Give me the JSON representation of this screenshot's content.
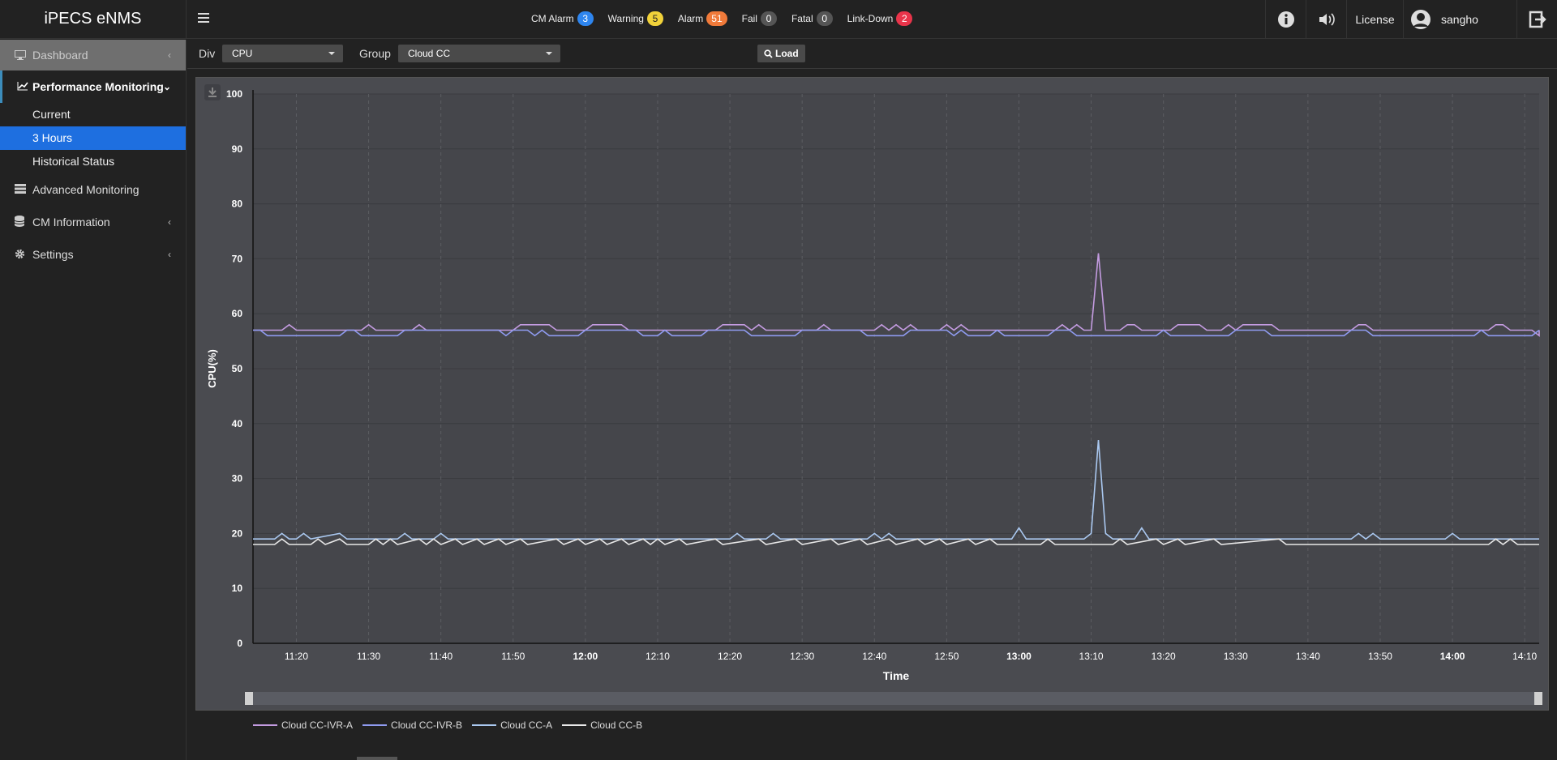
{
  "app": {
    "title": "iPECS eNMS"
  },
  "alarms": [
    {
      "label": "CM Alarm",
      "count": "3",
      "color": "#2e86f0"
    },
    {
      "label": "Warning",
      "count": "5",
      "color": "#f1d23a",
      "text_color": "#222"
    },
    {
      "label": "Alarm",
      "count": "51",
      "color": "#f07a3a"
    },
    {
      "label": "Fail",
      "count": "0",
      "color": "#555"
    },
    {
      "label": "Fatal",
      "count": "0",
      "color": "#555"
    },
    {
      "label": "Link-Down",
      "count": "2",
      "color": "#e8344a"
    }
  ],
  "topright": {
    "license": "License",
    "user": "sangho"
  },
  "sidebar": {
    "dashboard": "Dashboard",
    "performance": "Performance Monitoring",
    "sub": [
      "Current",
      "3 Hours",
      "Historical Status"
    ],
    "advanced": "Advanced Monitoring",
    "cm_info": "CM Information",
    "settings": "Settings"
  },
  "filters": {
    "div_label": "Div",
    "div_value": "CPU",
    "group_label": "Group",
    "group_value": "Cloud CC",
    "load": "Load"
  },
  "chart_data": {
    "type": "line",
    "xlabel": "Time",
    "ylabel": "CPU(%)",
    "ylim": [
      0,
      100
    ],
    "yticks": [
      0,
      10,
      20,
      30,
      40,
      50,
      60,
      70,
      80,
      90,
      100
    ],
    "xrange": [
      "11:14",
      "14:12"
    ],
    "xticks": [
      {
        "label": "11:20",
        "bold": false
      },
      {
        "label": "11:30",
        "bold": false
      },
      {
        "label": "11:40",
        "bold": false
      },
      {
        "label": "11:50",
        "bold": false
      },
      {
        "label": "12:00",
        "bold": true
      },
      {
        "label": "12:10",
        "bold": false
      },
      {
        "label": "12:20",
        "bold": false
      },
      {
        "label": "12:30",
        "bold": false
      },
      {
        "label": "12:40",
        "bold": false
      },
      {
        "label": "12:50",
        "bold": false
      },
      {
        "label": "13:00",
        "bold": true
      },
      {
        "label": "13:10",
        "bold": false
      },
      {
        "label": "13:20",
        "bold": false
      },
      {
        "label": "13:30",
        "bold": false
      },
      {
        "label": "13:40",
        "bold": false
      },
      {
        "label": "13:50",
        "bold": false
      },
      {
        "label": "14:00",
        "bold": true
      },
      {
        "label": "14:10",
        "bold": false
      }
    ],
    "grid": true,
    "series": [
      {
        "name": "Cloud CC-IVR-A",
        "color": "#c39be0",
        "baseline": 57,
        "points": [
          [
            "11:14",
            57
          ],
          [
            "11:18",
            57
          ],
          [
            "11:19",
            58
          ],
          [
            "11:20",
            57
          ],
          [
            "11:29",
            57
          ],
          [
            "11:30",
            58
          ],
          [
            "11:31",
            57
          ],
          [
            "11:36",
            57
          ],
          [
            "11:37",
            58
          ],
          [
            "11:38",
            57
          ],
          [
            "11:50",
            57
          ],
          [
            "11:51",
            58
          ],
          [
            "11:55",
            58
          ],
          [
            "11:56",
            57
          ],
          [
            "12:00",
            57
          ],
          [
            "12:01",
            58
          ],
          [
            "12:05",
            58
          ],
          [
            "12:06",
            57
          ],
          [
            "12:18",
            57
          ],
          [
            "12:19",
            58
          ],
          [
            "12:22",
            58
          ],
          [
            "12:23",
            57
          ],
          [
            "12:24",
            58
          ],
          [
            "12:25",
            57
          ],
          [
            "12:32",
            57
          ],
          [
            "12:33",
            58
          ],
          [
            "12:34",
            57
          ],
          [
            "12:40",
            57
          ],
          [
            "12:41",
            58
          ],
          [
            "12:42",
            57
          ],
          [
            "12:43",
            58
          ],
          [
            "12:44",
            57
          ],
          [
            "12:45",
            58
          ],
          [
            "12:46",
            57
          ],
          [
            "12:49",
            57
          ],
          [
            "12:50",
            58
          ],
          [
            "12:51",
            57
          ],
          [
            "12:52",
            58
          ],
          [
            "12:53",
            57
          ],
          [
            "13:05",
            57
          ],
          [
            "13:06",
            58
          ],
          [
            "13:07",
            57
          ],
          [
            "13:08",
            58
          ],
          [
            "13:09",
            57
          ],
          [
            "13:10",
            57
          ],
          [
            "13:11",
            71
          ],
          [
            "13:12",
            57
          ],
          [
            "13:14",
            57
          ],
          [
            "13:15",
            58
          ],
          [
            "13:16",
            58
          ],
          [
            "13:17",
            57
          ],
          [
            "13:21",
            57
          ],
          [
            "13:22",
            58
          ],
          [
            "13:25",
            58
          ],
          [
            "13:26",
            57
          ],
          [
            "13:28",
            57
          ],
          [
            "13:29",
            58
          ],
          [
            "13:30",
            57
          ],
          [
            "13:31",
            58
          ],
          [
            "13:35",
            58
          ],
          [
            "13:36",
            57
          ],
          [
            "13:46",
            57
          ],
          [
            "13:47",
            58
          ],
          [
            "13:48",
            58
          ],
          [
            "13:49",
            57
          ],
          [
            "14:05",
            57
          ],
          [
            "14:06",
            58
          ],
          [
            "14:07",
            58
          ],
          [
            "14:08",
            57
          ],
          [
            "14:11",
            57
          ],
          [
            "14:12",
            56
          ],
          [
            "14:12",
            57
          ]
        ]
      },
      {
        "name": "Cloud CC-IVR-B",
        "color": "#8f9bf0",
        "baseline": 56,
        "points": [
          [
            "11:14",
            57
          ],
          [
            "11:15",
            57
          ],
          [
            "11:16",
            56
          ],
          [
            "11:26",
            56
          ],
          [
            "11:27",
            57
          ],
          [
            "11:28",
            57
          ],
          [
            "11:29",
            56
          ],
          [
            "11:34",
            56
          ],
          [
            "11:35",
            57
          ],
          [
            "11:48",
            57
          ],
          [
            "11:49",
            56
          ],
          [
            "11:50",
            57
          ],
          [
            "11:52",
            57
          ],
          [
            "11:53",
            56
          ],
          [
            "11:54",
            57
          ],
          [
            "11:55",
            56
          ],
          [
            "11:59",
            56
          ],
          [
            "12:00",
            57
          ],
          [
            "12:07",
            57
          ],
          [
            "12:08",
            56
          ],
          [
            "12:10",
            56
          ],
          [
            "12:11",
            57
          ],
          [
            "12:12",
            56
          ],
          [
            "12:16",
            56
          ],
          [
            "12:17",
            57
          ],
          [
            "12:22",
            57
          ],
          [
            "12:23",
            56
          ],
          [
            "12:29",
            56
          ],
          [
            "12:30",
            57
          ],
          [
            "12:38",
            57
          ],
          [
            "12:39",
            56
          ],
          [
            "12:44",
            56
          ],
          [
            "12:45",
            57
          ],
          [
            "12:50",
            57
          ],
          [
            "12:51",
            56
          ],
          [
            "12:52",
            57
          ],
          [
            "12:53",
            56
          ],
          [
            "12:56",
            56
          ],
          [
            "12:57",
            57
          ],
          [
            "12:58",
            56
          ],
          [
            "13:04",
            56
          ],
          [
            "13:05",
            57
          ],
          [
            "13:07",
            57
          ],
          [
            "13:08",
            56
          ],
          [
            "13:19",
            56
          ],
          [
            "13:20",
            57
          ],
          [
            "13:21",
            56
          ],
          [
            "13:29",
            56
          ],
          [
            "13:30",
            57
          ],
          [
            "13:34",
            57
          ],
          [
            "13:35",
            56
          ],
          [
            "13:45",
            56
          ],
          [
            "13:46",
            57
          ],
          [
            "13:48",
            57
          ],
          [
            "13:49",
            56
          ],
          [
            "14:03",
            56
          ],
          [
            "14:04",
            57
          ],
          [
            "14:05",
            56
          ],
          [
            "14:11",
            56
          ],
          [
            "14:12",
            57
          ]
        ]
      },
      {
        "name": "Cloud CC-A",
        "color": "#aac8f0",
        "baseline": 19,
        "points": [
          [
            "11:14",
            19
          ],
          [
            "11:17",
            19
          ],
          [
            "11:18",
            20
          ],
          [
            "11:19",
            19
          ],
          [
            "11:20",
            19
          ],
          [
            "11:21",
            20
          ],
          [
            "11:22",
            19
          ],
          [
            "11:26",
            20
          ],
          [
            "11:27",
            19
          ],
          [
            "11:34",
            19
          ],
          [
            "11:35",
            20
          ],
          [
            "11:36",
            19
          ],
          [
            "11:39",
            19
          ],
          [
            "11:40",
            20
          ],
          [
            "11:41",
            19
          ],
          [
            "12:20",
            19
          ],
          [
            "12:21",
            20
          ],
          [
            "12:22",
            19
          ],
          [
            "12:25",
            19
          ],
          [
            "12:26",
            20
          ],
          [
            "12:27",
            19
          ],
          [
            "12:39",
            19
          ],
          [
            "12:40",
            20
          ],
          [
            "12:41",
            19
          ],
          [
            "12:42",
            20
          ],
          [
            "12:43",
            19
          ],
          [
            "12:59",
            19
          ],
          [
            "13:00",
            21
          ],
          [
            "13:01",
            19
          ],
          [
            "13:09",
            19
          ],
          [
            "13:10",
            20
          ],
          [
            "13:11",
            37
          ],
          [
            "13:12",
            20
          ],
          [
            "13:13",
            19
          ],
          [
            "13:16",
            19
          ],
          [
            "13:17",
            21
          ],
          [
            "13:18",
            19
          ],
          [
            "13:46",
            19
          ],
          [
            "13:47",
            20
          ],
          [
            "13:48",
            19
          ],
          [
            "13:49",
            20
          ],
          [
            "13:50",
            19
          ],
          [
            "13:59",
            19
          ],
          [
            "14:00",
            20
          ],
          [
            "14:01",
            19
          ],
          [
            "14:12",
            19
          ]
        ]
      },
      {
        "name": "Cloud CC-B",
        "color": "#e8e8e8",
        "baseline": 18,
        "points": [
          [
            "11:14",
            18
          ],
          [
            "11:17",
            18
          ],
          [
            "11:18",
            19
          ],
          [
            "11:19",
            18
          ],
          [
            "11:22",
            18
          ],
          [
            "11:23",
            19
          ],
          [
            "11:24",
            18
          ],
          [
            "11:26",
            19
          ],
          [
            "11:27",
            18
          ],
          [
            "11:30",
            18
          ],
          [
            "11:31",
            19
          ],
          [
            "11:32",
            18
          ],
          [
            "11:33",
            19
          ],
          [
            "11:34",
            18
          ],
          [
            "11:37",
            19
          ],
          [
            "11:38",
            18
          ],
          [
            "11:39",
            19
          ],
          [
            "11:40",
            18
          ],
          [
            "11:42",
            19
          ],
          [
            "11:43",
            18
          ],
          [
            "11:45",
            19
          ],
          [
            "11:46",
            18
          ],
          [
            "11:48",
            19
          ],
          [
            "11:49",
            18
          ],
          [
            "11:51",
            19
          ],
          [
            "11:52",
            18
          ],
          [
            "11:56",
            19
          ],
          [
            "11:57",
            18
          ],
          [
            "11:59",
            19
          ],
          [
            "12:00",
            18
          ],
          [
            "12:02",
            19
          ],
          [
            "12:03",
            18
          ],
          [
            "12:05",
            19
          ],
          [
            "12:06",
            18
          ],
          [
            "12:08",
            19
          ],
          [
            "12:09",
            18
          ],
          [
            "12:10",
            19
          ],
          [
            "12:11",
            18
          ],
          [
            "12:13",
            19
          ],
          [
            "12:14",
            18
          ],
          [
            "12:18",
            19
          ],
          [
            "12:19",
            18
          ],
          [
            "12:24",
            19
          ],
          [
            "12:25",
            18
          ],
          [
            "12:29",
            19
          ],
          [
            "12:30",
            18
          ],
          [
            "12:34",
            19
          ],
          [
            "12:35",
            18
          ],
          [
            "12:38",
            19
          ],
          [
            "12:39",
            18
          ],
          [
            "12:42",
            19
          ],
          [
            "12:43",
            18
          ],
          [
            "12:46",
            19
          ],
          [
            "12:47",
            18
          ],
          [
            "12:49",
            19
          ],
          [
            "12:50",
            18
          ],
          [
            "12:53",
            19
          ],
          [
            "12:54",
            18
          ],
          [
            "12:56",
            19
          ],
          [
            "12:57",
            18
          ],
          [
            "13:03",
            18
          ],
          [
            "13:04",
            19
          ],
          [
            "13:05",
            18
          ],
          [
            "13:13",
            18
          ],
          [
            "13:14",
            19
          ],
          [
            "13:15",
            18
          ],
          [
            "13:19",
            19
          ],
          [
            "13:20",
            18
          ],
          [
            "13:22",
            19
          ],
          [
            "13:23",
            18
          ],
          [
            "13:27",
            19
          ],
          [
            "13:28",
            18
          ],
          [
            "13:36",
            19
          ],
          [
            "13:37",
            18
          ],
          [
            "14:05",
            18
          ],
          [
            "14:06",
            19
          ],
          [
            "14:07",
            18
          ],
          [
            "14:08",
            19
          ],
          [
            "14:09",
            18
          ],
          [
            "14:12",
            18
          ]
        ]
      }
    ]
  }
}
